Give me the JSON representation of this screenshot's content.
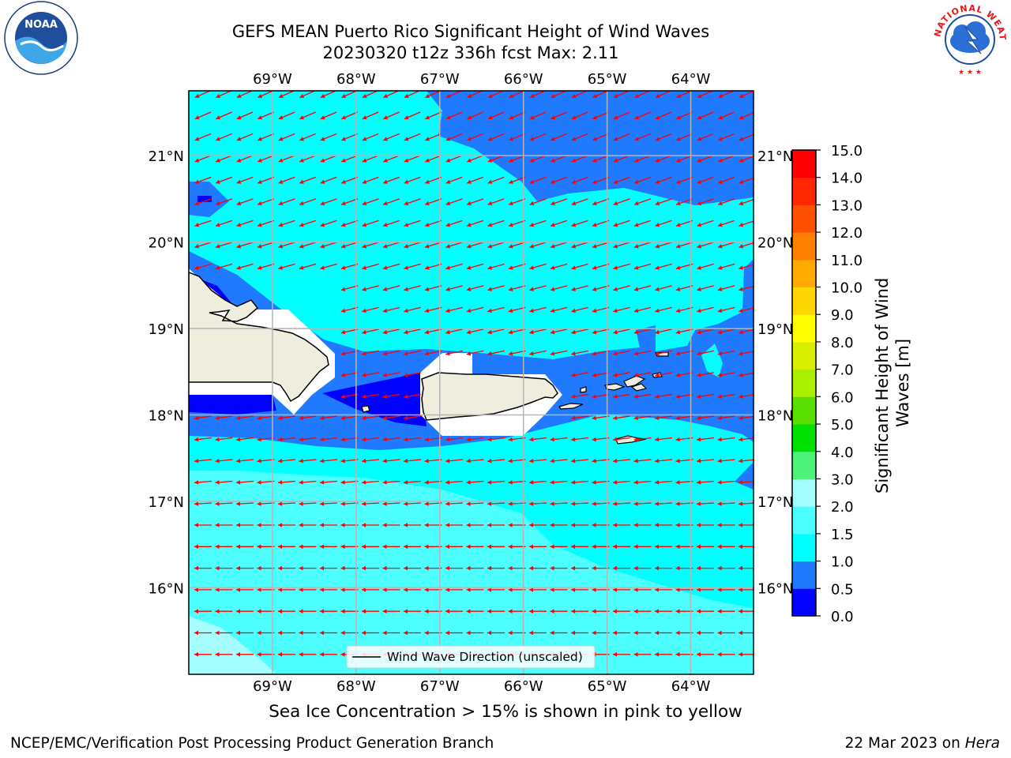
{
  "title": {
    "line1": "GEFS MEAN Puerto Rico Significant Height of Wind Waves",
    "line2": "20230320 t12z 336h fcst   Max: 2.11"
  },
  "map": {
    "lon_ticks": [
      "69°W",
      "68°W",
      "67°W",
      "66°W",
      "65°W",
      "64°W"
    ],
    "lat_ticks": [
      "21°N",
      "20°N",
      "19°N",
      "18°N",
      "17°N",
      "16°N"
    ],
    "legend_label": "Wind Wave Direction (unscaled)",
    "extent": {
      "lon_min": -70.0,
      "lon_max": -63.25,
      "lat_min": 15.0,
      "lat_max": 21.75
    },
    "arrow_color": "#ff0000",
    "land_color": "#efedde"
  },
  "colorbar": {
    "label": "Significant Height of Wind Waves [m]",
    "ticks": [
      "0.0",
      "0.5",
      "1.0",
      "1.5",
      "2.0",
      "3.0",
      "4.0",
      "5.0",
      "6.0",
      "7.0",
      "8.0",
      "9.0",
      "10.0",
      "11.0",
      "12.0",
      "13.0",
      "14.0",
      "15.0"
    ],
    "colors": [
      "#0000ff",
      "#1f7aff",
      "#00ffff",
      "#4dffff",
      "#a6ffff",
      "#4df27a",
      "#00e000",
      "#5ae000",
      "#aaee00",
      "#d8f000",
      "#ffff00",
      "#ffd700",
      "#ffaa00",
      "#ff8000",
      "#ff5000",
      "#ff2800",
      "#ff0000"
    ]
  },
  "ice_note": "Sea Ice Concentration > 15% is shown in pink to yellow",
  "footer": {
    "left": "NCEP/EMC/Verification Post Processing Product Generation Branch",
    "right_prefix": "22 Mar 2023 on",
    "right_machine": "Hera"
  },
  "logos": {
    "noaa_text": "NOAA",
    "nws_text": "NATIONAL WEATHER SERVICE"
  }
}
